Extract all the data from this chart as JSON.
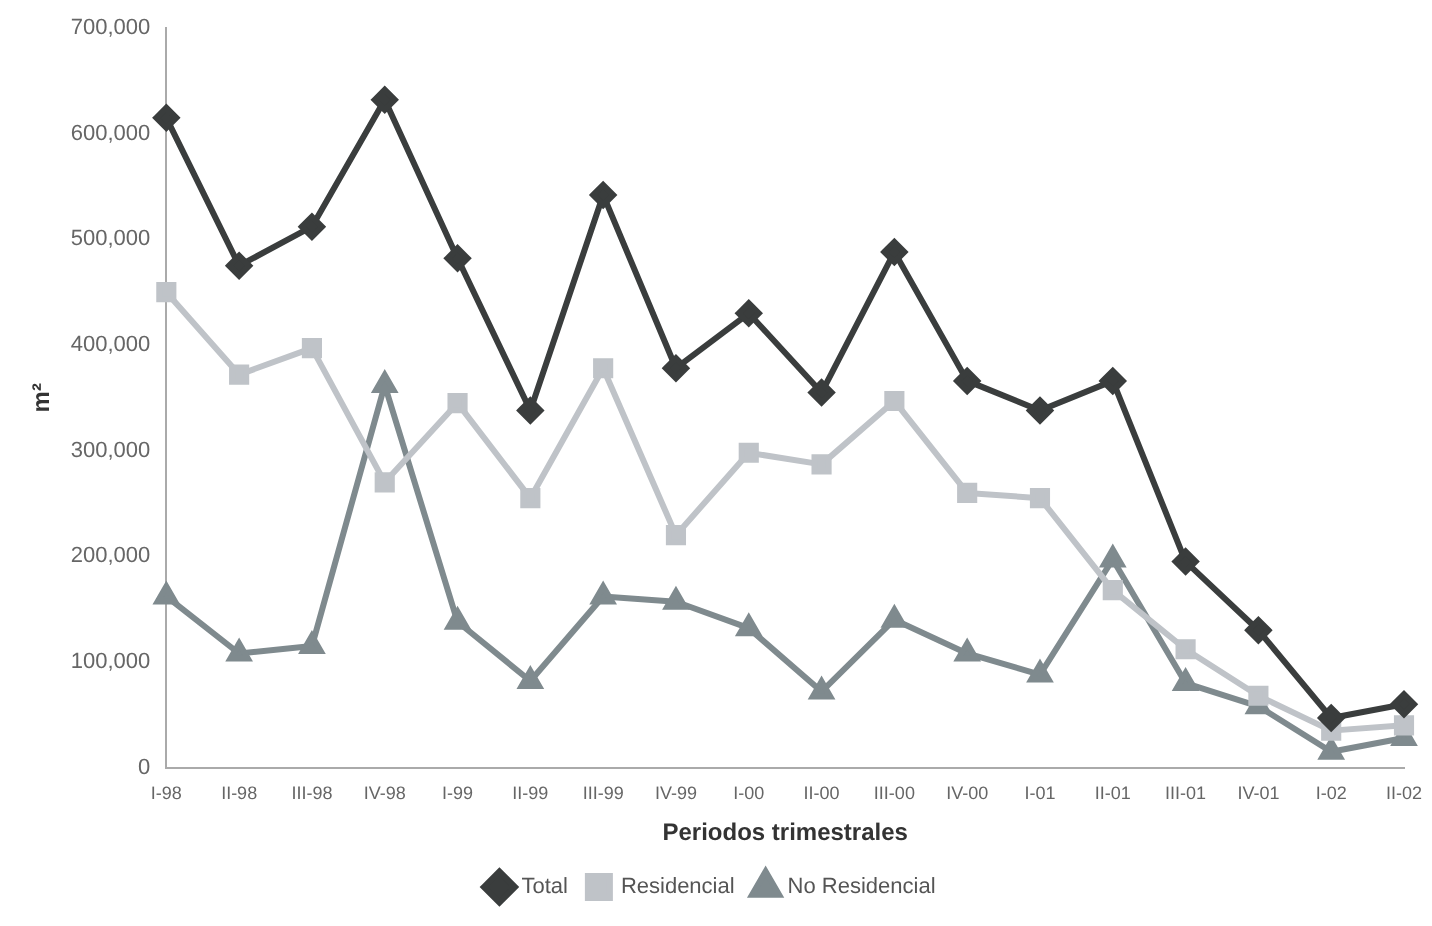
{
  "chart_data": {
    "type": "line",
    "xlabel": "Periodos trimestrales",
    "ylabel": "m²",
    "categories": [
      "I-98",
      "II-98",
      "III-98",
      "IV-98",
      "I-99",
      "II-99",
      "III-99",
      "IV-99",
      "I-00",
      "II-00",
      "III-00",
      "IV-00",
      "I-01",
      "II-01",
      "III-01",
      "IV-01",
      "I-02",
      "II-02"
    ],
    "series": [
      {
        "name": "Total",
        "color": "#3a3d3d",
        "marker": "diamond",
        "values": [
          615000,
          475000,
          512000,
          632000,
          482000,
          338000,
          542000,
          378000,
          430000,
          355000,
          488000,
          366000,
          338000,
          366000,
          195000,
          130000,
          47000,
          60000
        ]
      },
      {
        "name": "Residencial",
        "color": "#bfc3c8",
        "marker": "square",
        "values": [
          450000,
          372000,
          397000,
          270000,
          345000,
          255000,
          378000,
          220000,
          298000,
          287000,
          347000,
          260000,
          255000,
          168000,
          112000,
          68000,
          35000,
          40000
        ]
      },
      {
        "name": "No Residencial",
        "color": "#7f8a8e",
        "marker": "triangle",
        "values": [
          162000,
          108000,
          115000,
          362000,
          138000,
          82000,
          162000,
          157000,
          132000,
          72000,
          140000,
          108000,
          88000,
          197000,
          80000,
          58000,
          15000,
          28000
        ]
      }
    ],
    "ylim": [
      0,
      700000
    ],
    "yticks": [
      0,
      {
        "value": 100000,
        "label": "100,000"
      },
      {
        "value": 200000,
        "label": "200,000"
      },
      {
        "value": 300000,
        "label": "300,000"
      },
      {
        "value": 400000,
        "label": "400,000"
      },
      {
        "value": 500000,
        "label": "500,000"
      },
      {
        "value": 600000,
        "label": "600,000"
      },
      {
        "value": 700000,
        "label": "700,000"
      }
    ],
    "grid": false,
    "legend": "bottom",
    "line_style": "solid"
  }
}
